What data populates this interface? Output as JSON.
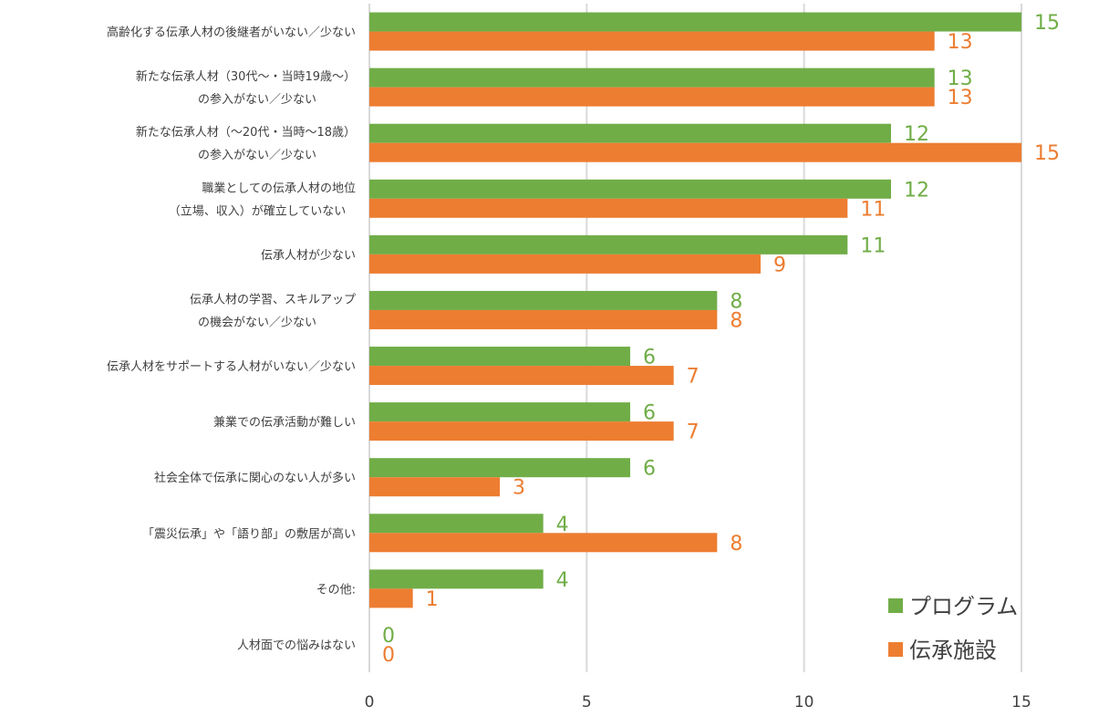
{
  "chart_data": {
    "type": "bar",
    "orientation": "horizontal",
    "categories": [
      [
        "高齢化する伝承人材の後継者がいない／少ない"
      ],
      [
        "新たな伝承人材（30代～・当時19歳～）",
        "の参入がない／少ない"
      ],
      [
        "新たな伝承人材（～20代・当時～18歳）",
        "の参入がない／少ない"
      ],
      [
        "職業としての伝承人材の地位",
        "（立場、収入）が確立していない"
      ],
      [
        "伝承人材が少ない"
      ],
      [
        "伝承人材の学習、スキルアップ",
        "の機会がない／少ない"
      ],
      [
        "伝承人材をサポートする人材がいない／少ない"
      ],
      [
        "兼業での伝承活動が難しい"
      ],
      [
        "社会全体で伝承に関心のない人が多い"
      ],
      [
        "「震災伝承」や「語り部」の敷居が高い"
      ],
      [
        "その他:"
      ],
      [
        "人材面での悩みはない"
      ]
    ],
    "series": [
      {
        "name": "プログラム",
        "color": "#70ad47",
        "values": [
          15,
          13,
          12,
          12,
          11,
          8,
          6,
          6,
          6,
          4,
          4,
          0
        ]
      },
      {
        "name": "伝承施設",
        "color": "#ed7d31",
        "values": [
          13,
          13,
          15,
          11,
          9,
          8,
          7,
          7,
          3,
          8,
          1,
          0
        ]
      }
    ],
    "xlim": [
      0,
      15
    ],
    "xticks": [
      "0",
      "5",
      "10",
      "15"
    ],
    "grid": "vertical",
    "legend_position": "bottom-right",
    "data_labels": true,
    "title": "",
    "xlabel": "",
    "ylabel": ""
  }
}
